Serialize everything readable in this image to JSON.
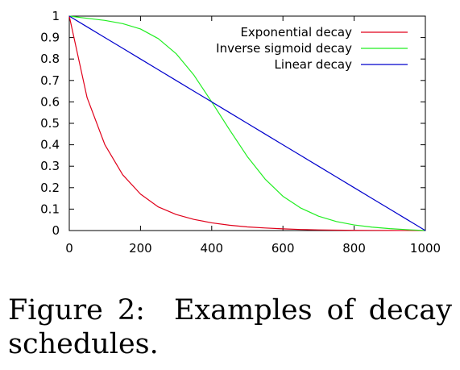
{
  "caption": {
    "label": "Figure 2:",
    "text": "Examples of decay schedules."
  },
  "chart_data": {
    "type": "line",
    "title": "",
    "xlabel": "",
    "ylabel": "",
    "xlim": [
      0,
      1000
    ],
    "ylim": [
      0,
      1
    ],
    "x_ticks": [
      0,
      200,
      400,
      600,
      800,
      1000
    ],
    "y_ticks": [
      0,
      0.1,
      0.2,
      0.3,
      0.4,
      0.5,
      0.6,
      0.7,
      0.8,
      0.9,
      1
    ],
    "x_tick_labels": [
      "0",
      "200",
      "400",
      "600",
      "800",
      "1000"
    ],
    "y_tick_labels": [
      "0",
      "0.1",
      "0.2",
      "0.3",
      "0.4",
      "0.5",
      "0.6",
      "0.7",
      "0.8",
      "0.9",
      "1"
    ],
    "grid": false,
    "legend_position": "top-right",
    "x": [
      0,
      50,
      100,
      150,
      200,
      250,
      300,
      350,
      400,
      450,
      500,
      550,
      600,
      650,
      700,
      750,
      800,
      850,
      900,
      950,
      1000
    ],
    "series": [
      {
        "name": "Exponential decay",
        "color": "#e0001a",
        "values": [
          1.0,
          0.62,
          0.4,
          0.26,
          0.17,
          0.11,
          0.075,
          0.052,
          0.036,
          0.025,
          0.017,
          0.012,
          0.008,
          0.005,
          0.003,
          0.002,
          0.001,
          0.0007,
          0.0004,
          0.0002,
          0.0
        ]
      },
      {
        "name": "Inverse sigmoid decay",
        "color": "#22ee22",
        "values": [
          1.0,
          0.99,
          0.98,
          0.965,
          0.94,
          0.895,
          0.825,
          0.725,
          0.6,
          0.47,
          0.345,
          0.24,
          0.16,
          0.105,
          0.067,
          0.042,
          0.026,
          0.016,
          0.009,
          0.004,
          0.0
        ]
      },
      {
        "name": "Linear decay",
        "color": "#0000cc",
        "values": [
          1.0,
          0.95,
          0.9,
          0.85,
          0.8,
          0.75,
          0.7,
          0.65,
          0.6,
          0.55,
          0.5,
          0.45,
          0.4,
          0.35,
          0.3,
          0.25,
          0.2,
          0.15,
          0.1,
          0.05,
          0.0
        ]
      }
    ]
  }
}
